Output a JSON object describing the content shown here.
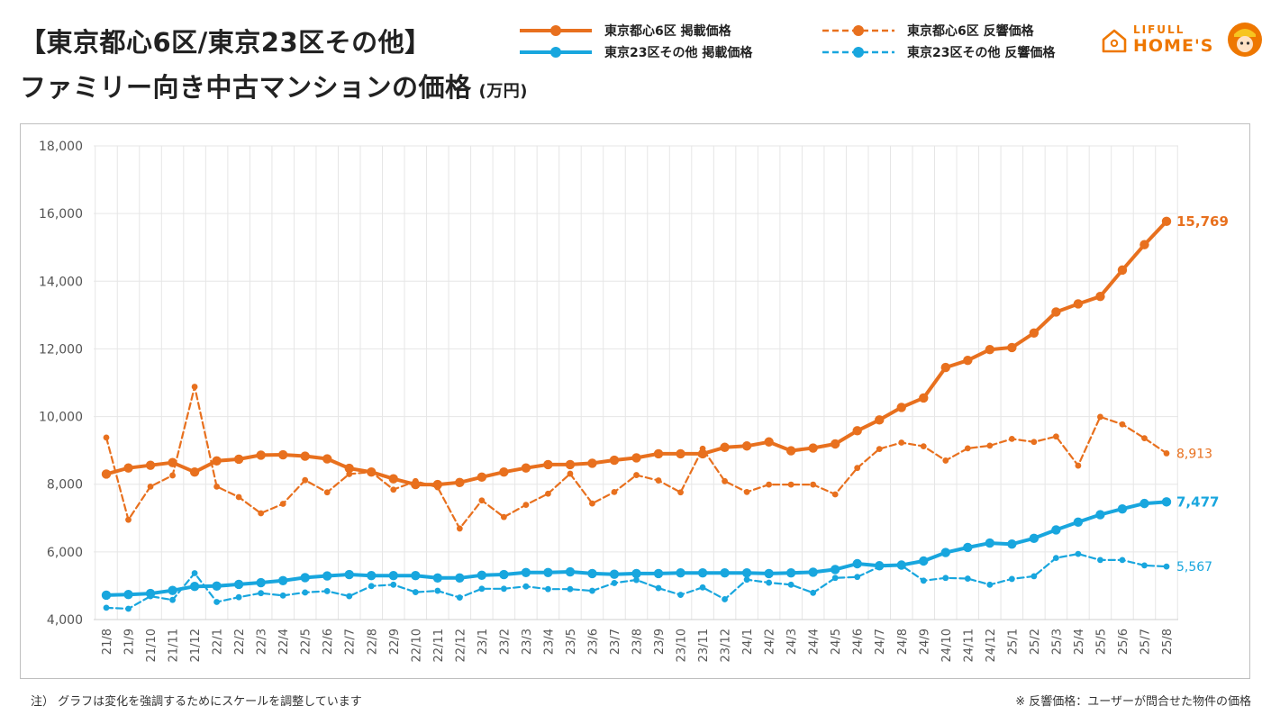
{
  "header": {
    "title_line1": "【東京都心6区/東京23区その他】",
    "title_line2": "ファミリー向き中古マンションの価格",
    "unit": "(万円)"
  },
  "legend": {
    "s1": "東京都心6区 掲載価格",
    "s2": "東京23区その他 掲載価格",
    "s3": "東京都心6区 反響価格",
    "s4": "東京23区その他 反響価格"
  },
  "logo": {
    "top": "LIFULL",
    "main": "HOME'S",
    "icon": "house-icon"
  },
  "notes": {
    "left": "注） グラフは変化を強調するためにスケールを調整しています",
    "right": "※ 反響価格：ユーザーが問合せた物件の価格"
  },
  "colors": {
    "orange": "#E8701E",
    "blue": "#18A6DE",
    "grid": "#e6e6e6"
  },
  "chart_data": {
    "type": "line",
    "ylim": [
      4000,
      18000
    ],
    "yticks": [
      "4,000",
      "6,000",
      "8,000",
      "10,000",
      "12,000",
      "14,000",
      "16,000",
      "18,000"
    ],
    "categories": [
      "21/8",
      "21/9",
      "21/10",
      "21/11",
      "21/12",
      "22/1",
      "22/2",
      "22/3",
      "22/4",
      "22/5",
      "22/6",
      "22/7",
      "22/8",
      "22/9",
      "22/10",
      "22/11",
      "22/12",
      "23/1",
      "23/2",
      "23/3",
      "23/4",
      "23/5",
      "23/6",
      "23/7",
      "23/8",
      "23/9",
      "23/10",
      "23/11",
      "23/12",
      "24/1",
      "24/2",
      "24/3",
      "24/4",
      "24/5",
      "24/6",
      "24/7",
      "24/8",
      "24/9",
      "24/10",
      "24/11",
      "24/12",
      "25/1",
      "25/2",
      "25/3",
      "25/4",
      "25/5",
      "25/6",
      "25/7",
      "25/8"
    ],
    "series": [
      {
        "name": "東京都心6区 掲載価格",
        "color": "#E8701E",
        "style": "solid",
        "end_label": "15,769",
        "values": [
          8300,
          8480,
          8560,
          8640,
          8360,
          8690,
          8740,
          8860,
          8870,
          8830,
          8750,
          8470,
          8360,
          8160,
          7990,
          7990,
          8050,
          8210,
          8360,
          8480,
          8580,
          8580,
          8620,
          8710,
          8780,
          8900,
          8900,
          8900,
          9090,
          9130,
          9250,
          8990,
          9070,
          9190,
          9580,
          9900,
          10270,
          10550,
          11450,
          11660,
          11980,
          12040,
          12470,
          13090,
          13330,
          13550,
          14330,
          15080,
          15769
        ]
      },
      {
        "name": "東京23区その他 掲載価格",
        "color": "#18A6DE",
        "style": "solid",
        "end_label": "7,477",
        "values": [
          4720,
          4740,
          4770,
          4860,
          4980,
          4990,
          5040,
          5090,
          5150,
          5240,
          5290,
          5330,
          5300,
          5300,
          5300,
          5230,
          5230,
          5310,
          5330,
          5390,
          5390,
          5410,
          5360,
          5340,
          5360,
          5360,
          5380,
          5380,
          5380,
          5380,
          5360,
          5380,
          5400,
          5480,
          5650,
          5590,
          5610,
          5730,
          5980,
          6130,
          6260,
          6230,
          6400,
          6650,
          6880,
          7100,
          7270,
          7430,
          7477
        ]
      },
      {
        "name": "東京都心6区 反響価格",
        "color": "#E8701E",
        "style": "dashed",
        "end_label": "8,913",
        "values": [
          9380,
          6950,
          7930,
          8260,
          10880,
          7930,
          7620,
          7140,
          7420,
          8120,
          7760,
          8300,
          8360,
          7840,
          8090,
          7910,
          6690,
          7520,
          7030,
          7390,
          7720,
          8310,
          7430,
          7770,
          8270,
          8110,
          7760,
          9050,
          8090,
          7770,
          7990,
          7990,
          7990,
          7700,
          8480,
          9040,
          9230,
          9120,
          8700,
          9060,
          9140,
          9340,
          9250,
          9410,
          8550,
          9990,
          9770,
          9360,
          8913
        ]
      },
      {
        "name": "東京23区その他 反響価格",
        "color": "#18A6DE",
        "style": "dashed",
        "end_label": "5,567",
        "values": [
          4350,
          4320,
          4690,
          4580,
          5370,
          4520,
          4660,
          4780,
          4710,
          4800,
          4840,
          4690,
          4990,
          5030,
          4810,
          4850,
          4650,
          4910,
          4910,
          4980,
          4900,
          4900,
          4850,
          5080,
          5170,
          4930,
          4730,
          4950,
          4600,
          5180,
          5090,
          5030,
          4790,
          5230,
          5260,
          5560,
          5600,
          5150,
          5230,
          5210,
          5030,
          5200,
          5280,
          5820,
          5940,
          5760,
          5760,
          5600,
          5567
        ]
      }
    ]
  }
}
